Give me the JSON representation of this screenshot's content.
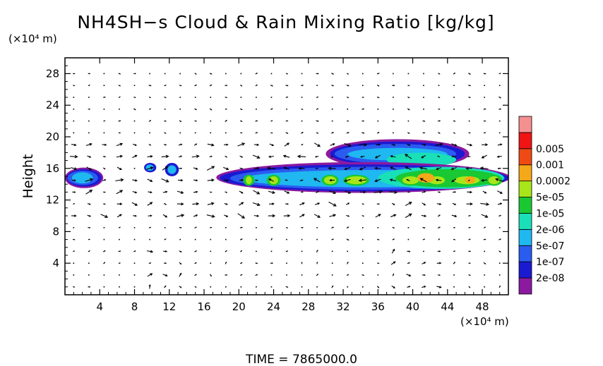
{
  "chart_data": {
    "type": "heatmap",
    "title": "NH4SH−s Cloud & Rain Mixing Ratio [kg/kg]",
    "xlabel": "",
    "ylabel": "Height",
    "x_unit": "(×10⁴ m)",
    "y_unit": "(×10⁴ m)",
    "xlim": [
      0,
      51
    ],
    "ylim": [
      0,
      30
    ],
    "x_ticks": [
      4,
      8,
      12,
      16,
      20,
      24,
      28,
      32,
      36,
      40,
      44,
      48
    ],
    "x_tick_labels": [
      "4",
      "8",
      "12",
      "16",
      "20",
      "24",
      "28",
      "32",
      "36",
      "40",
      "44",
      "48"
    ],
    "y_ticks": [
      4,
      8,
      12,
      16,
      20,
      24,
      28
    ],
    "y_tick_labels": [
      "4",
      "8",
      "12",
      "16",
      "20",
      "24",
      "28"
    ],
    "colorbar": {
      "labels": [
        "2e-08",
        "1e-07",
        "5e-07",
        "2e-06",
        "1e-05",
        "5e-05",
        "0.0002",
        "0.001",
        "0.005"
      ],
      "colors": [
        "#8c1aa0",
        "#1a1ad2",
        "#2a5cf0",
        "#1fb8f0",
        "#19e0b8",
        "#19c832",
        "#a8e61a",
        "#f5a818",
        "#f04a14",
        "#f01414",
        "#f59090"
      ]
    },
    "features": [
      {
        "name": "cloud-left",
        "x": [
          0.2,
          4.4
        ],
        "y": [
          13.6,
          16.0
        ]
      },
      {
        "name": "cloud-puff-9",
        "x": [
          9.2,
          10.4
        ],
        "y": [
          15.6,
          16.6
        ]
      },
      {
        "name": "cloud-puff-12",
        "x": [
          11.6,
          13.0
        ],
        "y": [
          15.0,
          16.6
        ]
      },
      {
        "name": "cloud-band-main",
        "x": [
          17.4,
          51.0
        ],
        "y": [
          13.0,
          16.6
        ]
      },
      {
        "name": "cloud-upper-layer",
        "x": [
          30.0,
          47.0
        ],
        "y": [
          16.0,
          19.6
        ]
      }
    ],
    "vectors": "wind arrow field across domain",
    "grid": false
  },
  "footer": {
    "time_label": "TIME  =  7865000.0"
  }
}
